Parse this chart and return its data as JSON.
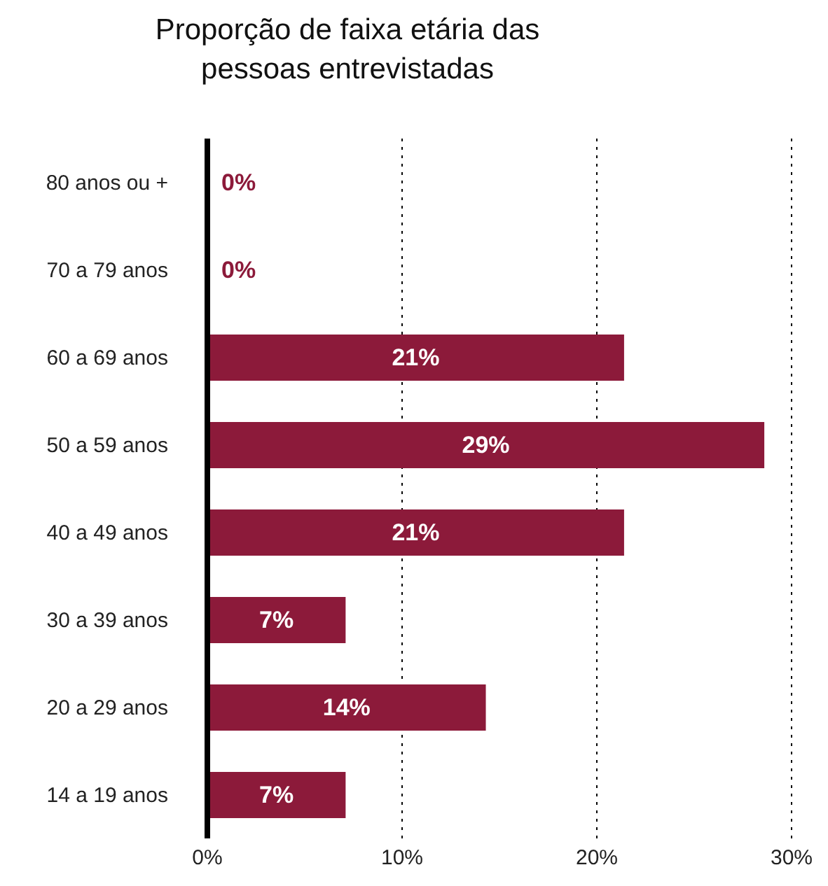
{
  "chart_data": {
    "type": "bar",
    "orientation": "horizontal",
    "title": "Proporção de faixa etária das pessoas entrevistadas",
    "categories": [
      "80 anos ou +",
      "70 a 79 anos",
      "60 a 69 anos",
      "50 a 59 anos",
      "40 a 49 anos",
      "30 a 39 anos",
      "20 a 29 anos",
      "14 a 19 anos"
    ],
    "values": [
      0,
      0,
      21.4,
      28.6,
      21.4,
      7.1,
      14.3,
      7.1
    ],
    "value_labels": [
      "0%",
      "0%",
      "21%",
      "29%",
      "21%",
      "7%",
      "14%",
      "7%"
    ],
    "color": "#8c1a3a",
    "xlim": [
      0,
      30
    ],
    "xticks": [
      {
        "value": 0,
        "label": "0%"
      },
      {
        "value": 10,
        "label": "10%"
      },
      {
        "value": 20,
        "label": "20%"
      },
      {
        "value": 30,
        "label": "30%"
      }
    ],
    "grid": "x",
    "legend": false
  }
}
